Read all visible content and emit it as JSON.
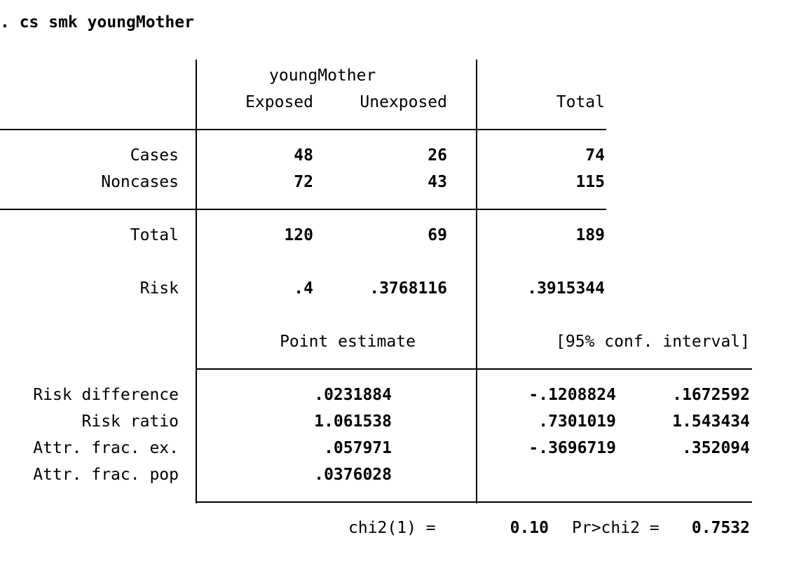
{
  "command": ". cs smk youngMother",
  "header": {
    "group_label": "youngMother",
    "col_exposed": "Exposed",
    "col_unexposed": "Unexposed",
    "col_total": "Total"
  },
  "rows": {
    "cases": {
      "label": "Cases",
      "exposed": "48",
      "unexposed": "26",
      "total": "74"
    },
    "noncases": {
      "label": "Noncases",
      "exposed": "72",
      "unexposed": "43",
      "total": "115"
    },
    "total": {
      "label": "Total",
      "exposed": "120",
      "unexposed": "69",
      "total": "189"
    },
    "risk": {
      "label": "Risk",
      "exposed": ".4",
      "unexposed": ".3768116",
      "total": ".3915344"
    }
  },
  "estimates_header": {
    "point_estimate": "Point estimate",
    "conf_interval": "[95% conf. interval]"
  },
  "estimates": [
    {
      "label": "Risk difference",
      "point": ".0231884",
      "lower": "-.1208824",
      "upper": ".1672592"
    },
    {
      "label": "Risk ratio",
      "point": "1.061538",
      "lower": ".7301019",
      "upper": "1.543434"
    },
    {
      "label": "Attr. frac. ex.",
      "point": ".057971",
      "lower": "-.3696719",
      "upper": ".352094"
    },
    {
      "label": "Attr. frac. pop",
      "point": ".0376028",
      "lower": "",
      "upper": ""
    }
  ],
  "test": {
    "chi2_label": "chi2(1) =",
    "chi2_value": "0.10",
    "p_label": "Pr>chi2 =",
    "p_value": "0.7532"
  }
}
